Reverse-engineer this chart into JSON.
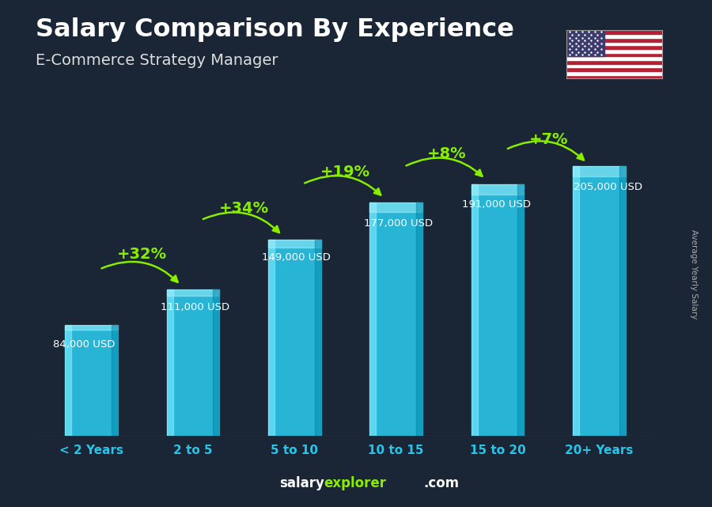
{
  "title": "Salary Comparison By Experience",
  "subtitle": "E-Commerce Strategy Manager",
  "categories": [
    "< 2 Years",
    "2 to 5",
    "5 to 10",
    "10 to 15",
    "15 to 20",
    "20+ Years"
  ],
  "values": [
    84000,
    111000,
    149000,
    177000,
    191000,
    205000
  ],
  "value_labels": [
    "84,000 USD",
    "111,000 USD",
    "149,000 USD",
    "177,000 USD",
    "191,000 USD",
    "205,000 USD"
  ],
  "pct_labels": [
    "+32%",
    "+34%",
    "+19%",
    "+8%",
    "+7%"
  ],
  "bar_color": "#29c5e8",
  "bar_edge_color": "#55d8f5",
  "background_color": "#1a2535",
  "title_color": "#ffffff",
  "subtitle_color": "#dddddd",
  "label_color": "#ffffff",
  "pct_color": "#88ee00",
  "tick_color": "#29c5e8",
  "footer_salary_color": "#ffffff",
  "footer_explorer_color": "#88ee00",
  "footer_com_color": "#ffffff",
  "ylabel": "Average Yearly Salary",
  "ylim": [
    0,
    250000
  ],
  "ylabel_color": "#aaaaaa"
}
